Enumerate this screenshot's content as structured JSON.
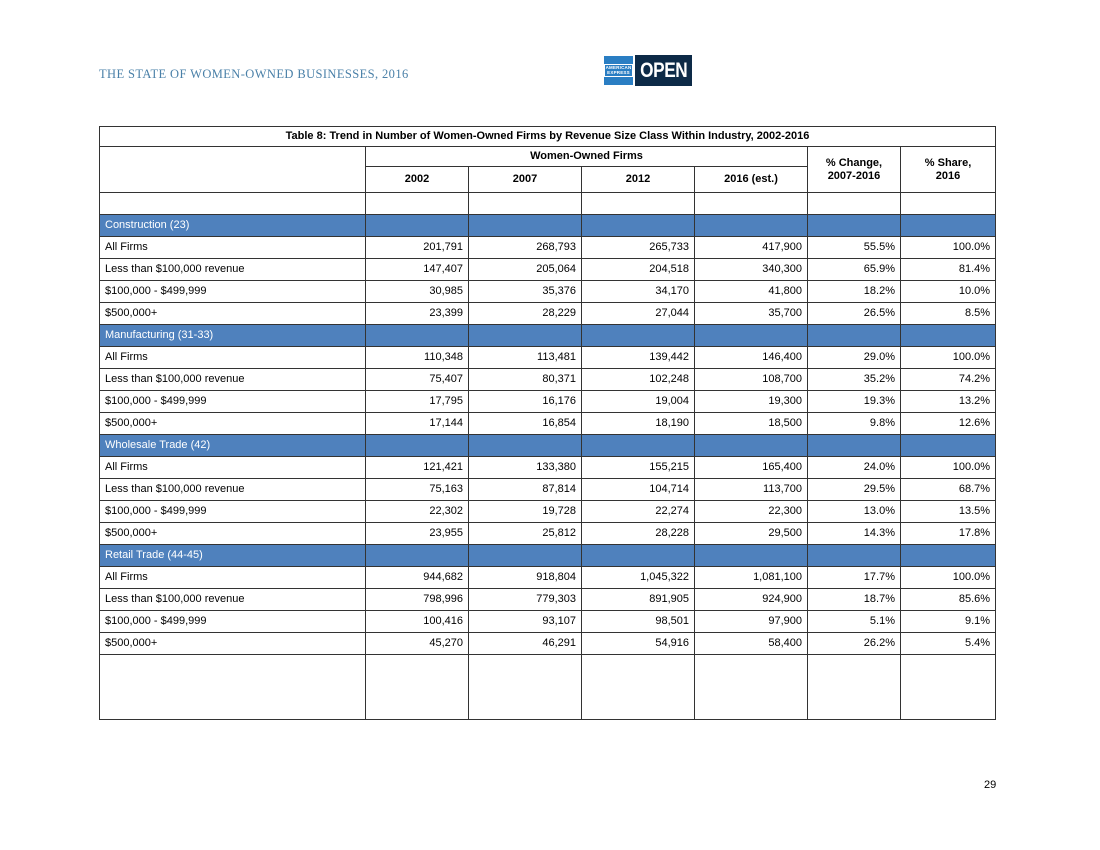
{
  "page": {
    "header_title": "THE STATE OF WOMEN-OWNED BUSINESSES, 2016",
    "page_number": "29"
  },
  "logo": {
    "amex_line1": "AMERICAN",
    "amex_line2": "EXPRESS",
    "open_label": "OPEN"
  },
  "colors": {
    "section_header_bg": "#4F81BD",
    "section_header_text": "#FFFFFF",
    "report_title_text": "#4A80A8",
    "amex_box_blue": "#2A7EC3",
    "open_box_navy": "#0D2A47",
    "grid_line": "#333333"
  },
  "table": {
    "title": "Table 8: Trend in Number of Women-Owned Firms by Revenue Size Class Within Industry, 2002-2016",
    "group_header": "Women-Owned Firms",
    "col_headers": [
      "2002",
      "2007",
      "2012",
      "2016 (est.)"
    ],
    "pct_change_line1": "% Change,",
    "pct_change_line2": "2007-2016",
    "pct_share_line1": "% Share,",
    "pct_share_line2": "2016",
    "sections": [
      {
        "name": "Construction (23)",
        "rows": [
          {
            "label": "All Firms",
            "values": [
              "201,791",
              "268,793",
              "265,733",
              "417,900",
              "55.5%",
              "100.0%"
            ]
          },
          {
            "label": "Less than $100,000 revenue",
            "values": [
              "147,407",
              "205,064",
              "204,518",
              "340,300",
              "65.9%",
              "81.4%"
            ]
          },
          {
            "label": "$100,000 - $499,999",
            "values": [
              "30,985",
              "35,376",
              "34,170",
              "41,800",
              "18.2%",
              "10.0%"
            ]
          },
          {
            "label": "$500,000+",
            "values": [
              "23,399",
              "28,229",
              "27,044",
              "35,700",
              "26.5%",
              "8.5%"
            ]
          }
        ]
      },
      {
        "name": "Manufacturing (31-33)",
        "rows": [
          {
            "label": "All Firms",
            "values": [
              "110,348",
              "113,481",
              "139,442",
              "146,400",
              "29.0%",
              "100.0%"
            ]
          },
          {
            "label": "Less than $100,000 revenue",
            "values": [
              "75,407",
              "80,371",
              "102,248",
              "108,700",
              "35.2%",
              "74.2%"
            ]
          },
          {
            "label": "$100,000 - $499,999",
            "values": [
              "17,795",
              "16,176",
              "19,004",
              "19,300",
              "19.3%",
              "13.2%"
            ]
          },
          {
            "label": "$500,000+",
            "values": [
              "17,144",
              "16,854",
              "18,190",
              "18,500",
              "9.8%",
              "12.6%"
            ]
          }
        ]
      },
      {
        "name": "Wholesale Trade (42)",
        "rows": [
          {
            "label": "All Firms",
            "values": [
              "121,421",
              "133,380",
              "155,215",
              "165,400",
              "24.0%",
              "100.0%"
            ]
          },
          {
            "label": "Less than $100,000 revenue",
            "values": [
              "75,163",
              "87,814",
              "104,714",
              "113,700",
              "29.5%",
              "68.7%"
            ]
          },
          {
            "label": "$100,000 - $499,999",
            "values": [
              "22,302",
              "19,728",
              "22,274",
              "22,300",
              "13.0%",
              "13.5%"
            ]
          },
          {
            "label": "$500,000+",
            "values": [
              "23,955",
              "25,812",
              "28,228",
              "29,500",
              "14.3%",
              "17.8%"
            ]
          }
        ]
      },
      {
        "name": "Retail Trade (44-45)",
        "rows": [
          {
            "label": "All Firms",
            "values": [
              "944,682",
              "918,804",
              "1,045,322",
              "1,081,100",
              "17.7%",
              "100.0%"
            ]
          },
          {
            "label": "Less than $100,000 revenue",
            "values": [
              "798,996",
              "779,303",
              "891,905",
              "924,900",
              "18.7%",
              "85.6%"
            ]
          },
          {
            "label": "$100,000 - $499,999",
            "values": [
              "100,416",
              "93,107",
              "98,501",
              "97,900",
              "5.1%",
              "9.1%"
            ]
          },
          {
            "label": "$500,000+",
            "values": [
              "45,270",
              "46,291",
              "54,916",
              "58,400",
              "26.2%",
              "5.4%"
            ]
          }
        ]
      }
    ]
  }
}
